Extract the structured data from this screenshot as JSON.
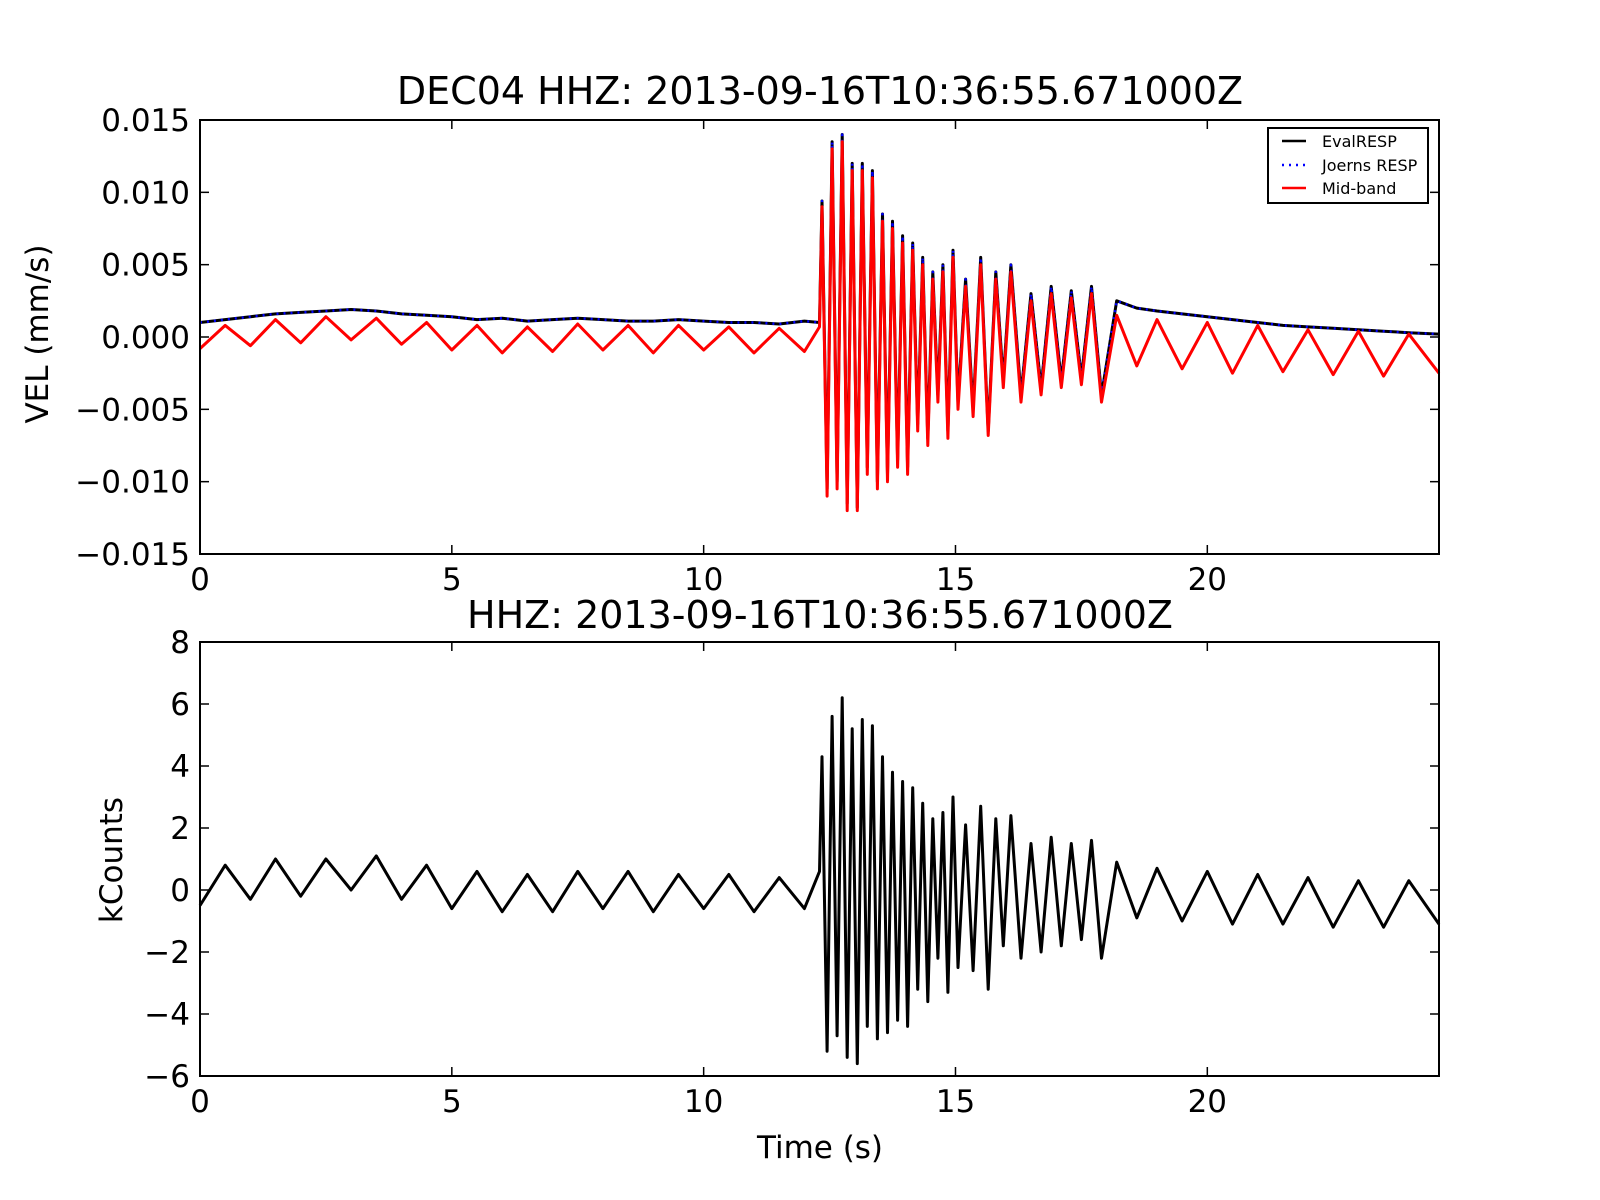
{
  "chart_data": [
    {
      "type": "line",
      "title": "DEC04  HHZ: 2013-09-16T10:36:55.671000Z",
      "xlabel": "",
      "ylabel": "VEL (mm/s)",
      "xlim": [
        0,
        24.6
      ],
      "ylim": [
        -0.015,
        0.015
      ],
      "xticks": [
        0,
        5,
        10,
        15,
        20
      ],
      "xtick_labels": [
        "0",
        "5",
        "10",
        "15",
        "20"
      ],
      "yticks": [
        0.015,
        0.01,
        0.005,
        0.0,
        -0.005,
        -0.01,
        -0.015
      ],
      "ytick_labels": [
        "0.015",
        "0.010",
        "0.005",
        "0.000",
        "−0.005",
        "−0.010",
        "−0.015"
      ],
      "grid": false,
      "legend": "top-right",
      "series": [
        {
          "name": "EvalRESP",
          "color": "#000000",
          "style": "solid",
          "x": [
            0.0,
            0.5,
            1.0,
            1.5,
            2.0,
            2.5,
            3.0,
            3.5,
            4.0,
            4.5,
            5.0,
            5.5,
            6.0,
            6.5,
            7.0,
            7.5,
            8.0,
            8.5,
            9.0,
            9.5,
            10.0,
            10.5,
            11.0,
            11.5,
            12.0,
            12.3,
            12.35,
            12.45,
            12.55,
            12.65,
            12.75,
            12.85,
            12.95,
            13.05,
            13.15,
            13.25,
            13.35,
            13.45,
            13.55,
            13.65,
            13.75,
            13.85,
            13.95,
            14.05,
            14.15,
            14.25,
            14.35,
            14.45,
            14.55,
            14.65,
            14.75,
            14.85,
            14.95,
            15.05,
            15.2,
            15.35,
            15.5,
            15.65,
            15.8,
            15.95,
            16.1,
            16.3,
            16.5,
            16.7,
            16.9,
            17.1,
            17.3,
            17.5,
            17.7,
            17.9,
            18.2,
            18.6,
            19.0,
            19.5,
            20.0,
            20.5,
            21.0,
            21.5,
            22.0,
            22.5,
            23.0,
            23.5,
            24.0,
            24.6
          ],
          "y": [
            0.001,
            0.0012,
            0.0014,
            0.0016,
            0.0017,
            0.0018,
            0.0019,
            0.0018,
            0.0016,
            0.0015,
            0.0014,
            0.0012,
            0.0013,
            0.0011,
            0.0012,
            0.0013,
            0.0012,
            0.0011,
            0.0011,
            0.0012,
            0.0011,
            0.001,
            0.001,
            0.0009,
            0.0011,
            0.001,
            0.0094,
            -0.0105,
            0.0135,
            -0.01,
            0.014,
            -0.0115,
            0.012,
            -0.0118,
            0.012,
            -0.009,
            0.0115,
            -0.01,
            0.0085,
            -0.0095,
            0.008,
            -0.0085,
            0.007,
            -0.009,
            0.0065,
            -0.006,
            0.0055,
            -0.007,
            0.0045,
            -0.004,
            0.005,
            -0.0065,
            0.006,
            -0.0045,
            0.004,
            -0.005,
            0.0055,
            -0.0065,
            0.0045,
            -0.003,
            0.005,
            -0.004,
            0.003,
            -0.0035,
            0.0035,
            -0.003,
            0.0032,
            -0.0028,
            0.0035,
            -0.004,
            0.0025,
            0.002,
            0.0018,
            0.0016,
            0.0014,
            0.0012,
            0.001,
            0.0008,
            0.0007,
            0.0006,
            0.0005,
            0.0004,
            0.0003,
            0.0002
          ]
        },
        {
          "name": "Joerns RESP",
          "color": "#0000ff",
          "style": "dotted",
          "x": [
            0.0,
            0.5,
            1.0,
            1.5,
            2.0,
            2.5,
            3.0,
            3.5,
            4.0,
            4.5,
            5.0,
            5.5,
            6.0,
            6.5,
            7.0,
            7.5,
            8.0,
            8.5,
            9.0,
            9.5,
            10.0,
            10.5,
            11.0,
            11.5,
            12.0,
            12.3,
            12.35,
            12.45,
            12.55,
            12.65,
            12.75,
            12.85,
            12.95,
            13.05,
            13.15,
            13.25,
            13.35,
            13.45,
            13.55,
            13.65,
            13.75,
            13.85,
            13.95,
            14.05,
            14.15,
            14.25,
            14.35,
            14.45,
            14.55,
            14.65,
            14.75,
            14.85,
            14.95,
            15.05,
            15.2,
            15.35,
            15.5,
            15.65,
            15.8,
            15.95,
            16.1,
            16.3,
            16.5,
            16.7,
            16.9,
            17.1,
            17.3,
            17.5,
            17.7,
            17.9,
            18.2,
            18.6,
            19.0,
            19.5,
            20.0,
            20.5,
            21.0,
            21.5,
            22.0,
            22.5,
            23.0,
            23.5,
            24.0,
            24.6
          ],
          "y": [
            0.001,
            0.0012,
            0.0014,
            0.0016,
            0.0017,
            0.0018,
            0.0019,
            0.0018,
            0.0016,
            0.0015,
            0.0014,
            0.0012,
            0.0013,
            0.0011,
            0.0012,
            0.0013,
            0.0012,
            0.0011,
            0.0011,
            0.0012,
            0.0011,
            0.001,
            0.001,
            0.0009,
            0.0011,
            0.001,
            0.0094,
            -0.0105,
            0.0135,
            -0.01,
            0.014,
            -0.0115,
            0.012,
            -0.0118,
            0.012,
            -0.009,
            0.0115,
            -0.01,
            0.0085,
            -0.0095,
            0.008,
            -0.0085,
            0.007,
            -0.009,
            0.0065,
            -0.006,
            0.0055,
            -0.007,
            0.0045,
            -0.004,
            0.005,
            -0.0065,
            0.006,
            -0.0045,
            0.004,
            -0.005,
            0.0055,
            -0.0065,
            0.0045,
            -0.003,
            0.005,
            -0.004,
            0.003,
            -0.0035,
            0.0035,
            -0.003,
            0.0032,
            -0.0028,
            0.0035,
            -0.004,
            0.0025,
            0.002,
            0.0018,
            0.0016,
            0.0014,
            0.0012,
            0.001,
            0.0008,
            0.0007,
            0.0006,
            0.0005,
            0.0004,
            0.0003,
            0.0002
          ]
        },
        {
          "name": "Mid-band",
          "color": "#ff0000",
          "style": "solid",
          "x": [
            0.0,
            0.5,
            1.0,
            1.5,
            2.0,
            2.5,
            3.0,
            3.5,
            4.0,
            4.5,
            5.0,
            5.5,
            6.0,
            6.5,
            7.0,
            7.5,
            8.0,
            8.5,
            9.0,
            9.5,
            10.0,
            10.5,
            11.0,
            11.5,
            12.0,
            12.3,
            12.35,
            12.45,
            12.55,
            12.65,
            12.75,
            12.85,
            12.95,
            13.05,
            13.15,
            13.25,
            13.35,
            13.45,
            13.55,
            13.65,
            13.75,
            13.85,
            13.95,
            14.05,
            14.15,
            14.25,
            14.35,
            14.45,
            14.55,
            14.65,
            14.75,
            14.85,
            14.95,
            15.05,
            15.2,
            15.35,
            15.5,
            15.65,
            15.8,
            15.95,
            16.1,
            16.3,
            16.5,
            16.7,
            16.9,
            17.1,
            17.3,
            17.5,
            17.7,
            17.9,
            18.2,
            18.6,
            19.0,
            19.5,
            20.0,
            20.5,
            21.0,
            21.5,
            22.0,
            22.5,
            23.0,
            23.5,
            24.0,
            24.6
          ],
          "y": [
            -0.0008,
            0.0008,
            -0.0006,
            0.0012,
            -0.0004,
            0.0014,
            -0.0002,
            0.0013,
            -0.0005,
            0.001,
            -0.0009,
            0.0008,
            -0.0011,
            0.0007,
            -0.001,
            0.0009,
            -0.0009,
            0.0008,
            -0.0011,
            0.0008,
            -0.0009,
            0.0007,
            -0.0011,
            0.0006,
            -0.001,
            0.0007,
            0.009,
            -0.011,
            0.013,
            -0.0105,
            0.0135,
            -0.012,
            0.0115,
            -0.012,
            0.0115,
            -0.0095,
            0.011,
            -0.0105,
            0.008,
            -0.01,
            0.0075,
            -0.009,
            0.0065,
            -0.0095,
            0.006,
            -0.0065,
            0.005,
            -0.0075,
            0.004,
            -0.0045,
            0.0045,
            -0.007,
            0.0055,
            -0.005,
            0.0035,
            -0.0055,
            0.005,
            -0.0068,
            0.004,
            -0.0035,
            0.0045,
            -0.0045,
            0.0025,
            -0.004,
            0.003,
            -0.0035,
            0.0027,
            -0.0033,
            0.003,
            -0.0045,
            0.0015,
            -0.002,
            0.0012,
            -0.0022,
            0.001,
            -0.0025,
            0.0008,
            -0.0024,
            0.0005,
            -0.0026,
            0.0004,
            -0.0027,
            0.0002,
            -0.0025
          ]
        }
      ]
    },
    {
      "type": "line",
      "title": "HHZ: 2013-09-16T10:36:55.671000Z",
      "xlabel": "Time (s)",
      "ylabel": "kCounts",
      "xlim": [
        0,
        24.6
      ],
      "ylim": [
        -6,
        8
      ],
      "xticks": [
        0,
        5,
        10,
        15,
        20
      ],
      "xtick_labels": [
        "0",
        "5",
        "10",
        "15",
        "20"
      ],
      "yticks": [
        8,
        6,
        4,
        2,
        0,
        -2,
        -4,
        -6
      ],
      "ytick_labels": [
        "8",
        "6",
        "4",
        "2",
        "0",
        "−2",
        "−4",
        "−6"
      ],
      "grid": false,
      "series": [
        {
          "color": "#000000",
          "style": "solid",
          "x": [
            0.0,
            0.5,
            1.0,
            1.5,
            2.0,
            2.5,
            3.0,
            3.5,
            4.0,
            4.5,
            5.0,
            5.5,
            6.0,
            6.5,
            7.0,
            7.5,
            8.0,
            8.5,
            9.0,
            9.5,
            10.0,
            10.5,
            11.0,
            11.5,
            12.0,
            12.3,
            12.35,
            12.45,
            12.55,
            12.65,
            12.75,
            12.85,
            12.95,
            13.05,
            13.15,
            13.25,
            13.35,
            13.45,
            13.55,
            13.65,
            13.75,
            13.85,
            13.95,
            14.05,
            14.15,
            14.25,
            14.35,
            14.45,
            14.55,
            14.65,
            14.75,
            14.85,
            14.95,
            15.05,
            15.2,
            15.35,
            15.5,
            15.65,
            15.8,
            15.95,
            16.1,
            16.3,
            16.5,
            16.7,
            16.9,
            17.1,
            17.3,
            17.5,
            17.7,
            17.9,
            18.2,
            18.6,
            19.0,
            19.5,
            20.0,
            20.5,
            21.0,
            21.5,
            22.0,
            22.5,
            23.0,
            23.5,
            24.0,
            24.6
          ],
          "y": [
            -0.5,
            0.8,
            -0.3,
            1.0,
            -0.2,
            1.0,
            0.0,
            1.1,
            -0.3,
            0.8,
            -0.6,
            0.6,
            -0.7,
            0.5,
            -0.7,
            0.6,
            -0.6,
            0.6,
            -0.7,
            0.5,
            -0.6,
            0.5,
            -0.7,
            0.4,
            -0.6,
            0.6,
            4.3,
            -5.2,
            5.6,
            -4.7,
            6.2,
            -5.4,
            5.2,
            -5.6,
            5.5,
            -4.4,
            5.3,
            -4.8,
            4.3,
            -4.6,
            3.8,
            -4.2,
            3.5,
            -4.4,
            3.3,
            -3.2,
            2.8,
            -3.6,
            2.3,
            -2.2,
            2.5,
            -3.3,
            3.0,
            -2.5,
            2.1,
            -2.6,
            2.7,
            -3.2,
            2.3,
            -1.8,
            2.4,
            -2.2,
            1.5,
            -2.0,
            1.7,
            -1.8,
            1.5,
            -1.6,
            1.6,
            -2.2,
            0.9,
            -0.9,
            0.7,
            -1.0,
            0.6,
            -1.1,
            0.5,
            -1.1,
            0.4,
            -1.2,
            0.3,
            -1.2,
            0.3,
            -1.1
          ]
        }
      ]
    }
  ]
}
